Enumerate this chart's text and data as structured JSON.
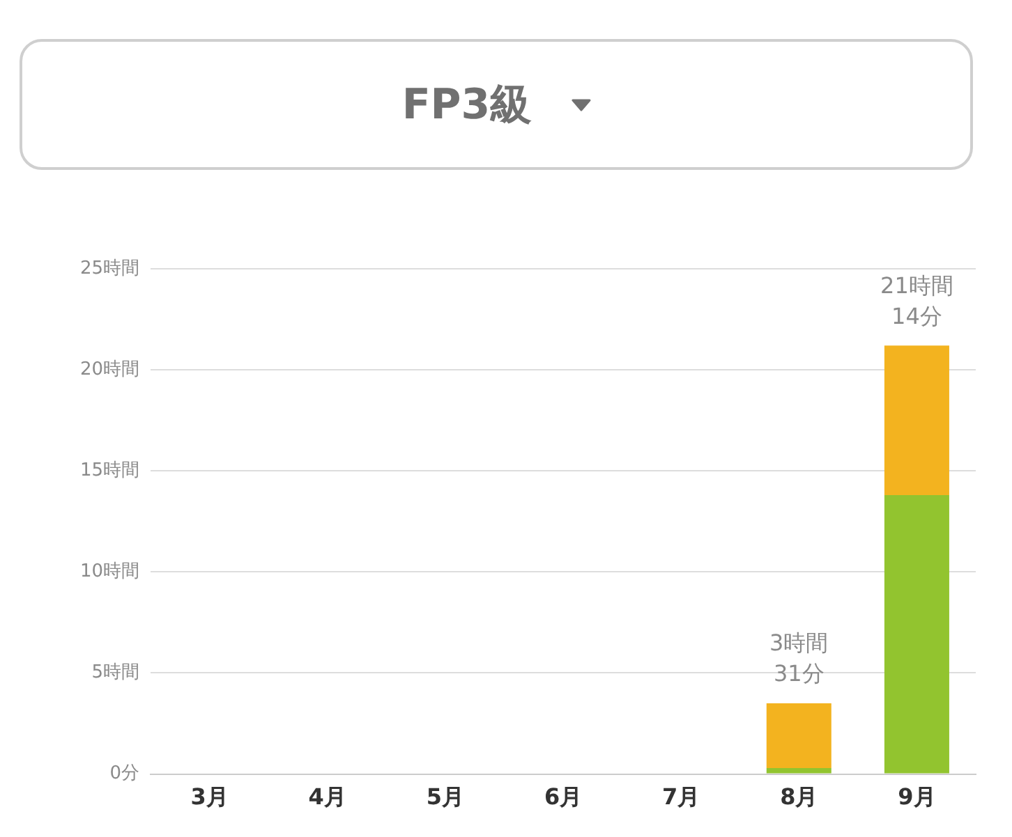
{
  "chart_data": {
    "type": "bar",
    "title": "FP3級",
    "categories": [
      "3月",
      "4月",
      "5月",
      "6月",
      "7月",
      "8月",
      "9月"
    ],
    "series": [
      {
        "color": "#92c42f",
        "values": [
          0,
          0,
          0,
          0,
          0,
          0.3,
          13.8
        ]
      },
      {
        "color": "#f3b31f",
        "values": [
          0,
          0,
          0,
          0,
          0,
          3.2,
          7.4
        ]
      }
    ],
    "stacked": true,
    "ylim": [
      0,
      25
    ],
    "yticks": [
      {
        "value": 0,
        "label": "0分"
      },
      {
        "value": 5,
        "label": "5時間"
      },
      {
        "value": 10,
        "label": "10時間"
      },
      {
        "value": 15,
        "label": "15時間"
      },
      {
        "value": 20,
        "label": "20時間"
      },
      {
        "value": 25,
        "label": "25時間"
      }
    ],
    "grid": "y",
    "totals": [
      null,
      null,
      null,
      null,
      null,
      "3時間\n31分",
      "21時間\n14分"
    ]
  }
}
